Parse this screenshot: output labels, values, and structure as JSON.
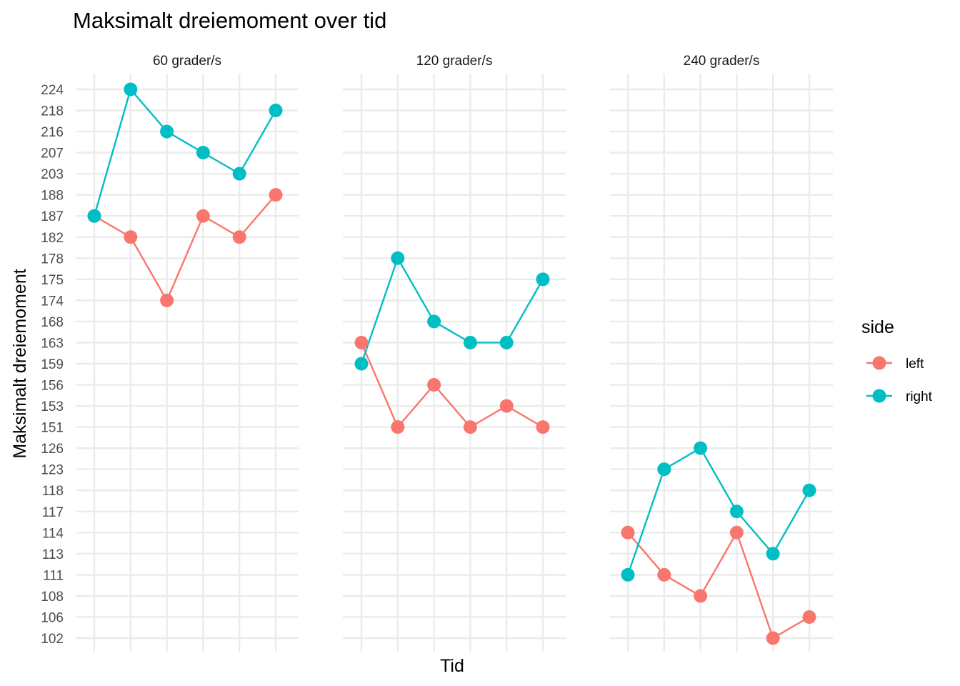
{
  "chart_data": {
    "type": "line",
    "title": "Maksimalt dreiemoment over tid",
    "xlabel": "Tid",
    "ylabel": "Maksimalt dreiemoment",
    "y_categories": [
      "102",
      "106",
      "108",
      "111",
      "113",
      "114",
      "117",
      "118",
      "123",
      "126",
      "151",
      "153",
      "156",
      "159",
      "163",
      "168",
      "174",
      "175",
      "178",
      "182",
      "187",
      "188",
      "203",
      "207",
      "216",
      "218",
      "224"
    ],
    "x_points": 6,
    "legend": {
      "title": "side",
      "placement": "right",
      "entries": [
        {
          "name": "left",
          "color": "#F8766D"
        },
        {
          "name": "right",
          "color": "#00BFC4"
        }
      ]
    },
    "grid": true,
    "facets": [
      {
        "label": "60 grader/s",
        "series": [
          {
            "name": "left",
            "values": [
              "187",
              "182",
              "174",
              "187",
              "182",
              "188"
            ]
          },
          {
            "name": "right",
            "values": [
              "187",
              "224",
              "216",
              "207",
              "203",
              "218"
            ]
          }
        ]
      },
      {
        "label": "120 grader/s",
        "series": [
          {
            "name": "left",
            "values": [
              "163",
              "151",
              "156",
              "151",
              "153",
              "151"
            ]
          },
          {
            "name": "right",
            "values": [
              "159",
              "178",
              "168",
              "163",
              "163",
              "175"
            ]
          }
        ]
      },
      {
        "label": "240 grader/s",
        "series": [
          {
            "name": "left",
            "values": [
              "114",
              "111",
              "108",
              "114",
              "102",
              "106"
            ]
          },
          {
            "name": "right",
            "values": [
              "111",
              "123",
              "126",
              "117",
              "113",
              "118"
            ]
          }
        ]
      }
    ]
  }
}
